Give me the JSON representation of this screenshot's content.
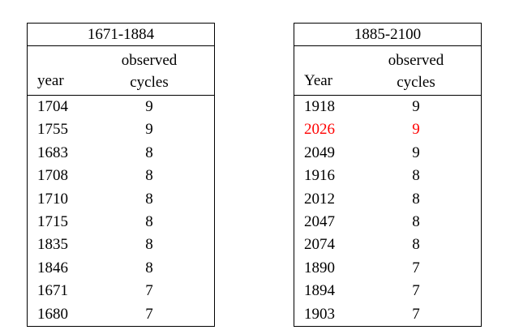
{
  "tables": [
    {
      "title": "1671-1884",
      "columns": [
        "year",
        "observed cycles"
      ],
      "rows": [
        [
          "1704",
          "9"
        ],
        [
          "1755",
          "9"
        ],
        [
          "1683",
          "8"
        ],
        [
          "1708",
          "8"
        ],
        [
          "1710",
          "8"
        ],
        [
          "1715",
          "8"
        ],
        [
          "1835",
          "8"
        ],
        [
          "1846",
          "8"
        ],
        [
          "1671",
          "7"
        ],
        [
          "1680",
          "7"
        ]
      ]
    },
    {
      "title": "1885-2100",
      "columns": [
        "Year",
        "observed cycles"
      ],
      "rows": [
        [
          "1918",
          "9"
        ],
        [
          "2026",
          "9"
        ],
        [
          "2049",
          "9"
        ],
        [
          "1916",
          "8"
        ],
        [
          "2012",
          "8"
        ],
        [
          "2047",
          "8"
        ],
        [
          "2074",
          "8"
        ],
        [
          "1890",
          "7"
        ],
        [
          "1894",
          "7"
        ],
        [
          "1903",
          "7"
        ]
      ],
      "highlight": {
        "row": 1,
        "color": "#ff0000"
      }
    }
  ]
}
